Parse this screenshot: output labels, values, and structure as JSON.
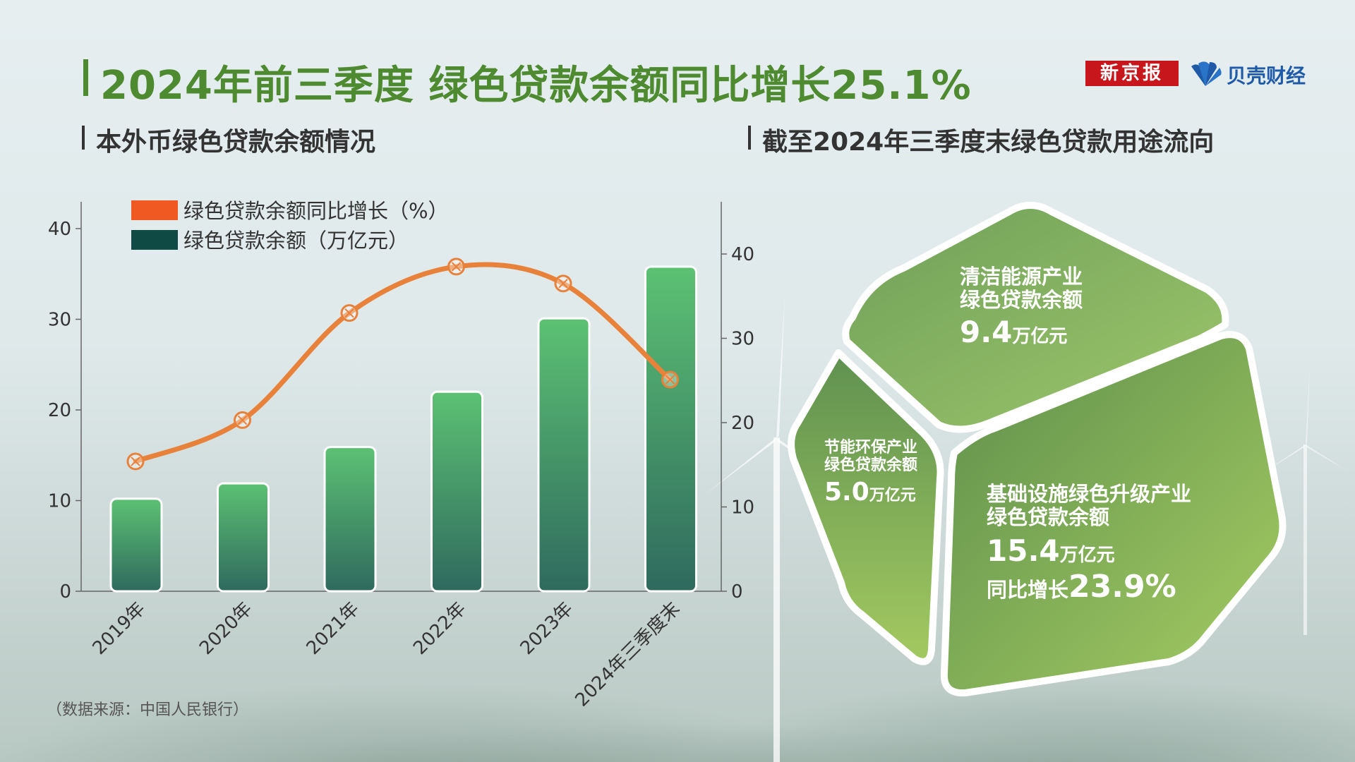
{
  "title": "2024年前三季度 绿色贷款余额同比增长25.1%",
  "logos": {
    "xinjingbao": "新京报",
    "beike": "贝壳财经"
  },
  "left_subtitle": "本外币绿色贷款余额情况",
  "right_subtitle": "截至2024年三季度末绿色贷款用途流向",
  "source": "（数据来源：中国人民银行）",
  "colors": {
    "accent": "#4e8a2f",
    "line": "#e8813a",
    "bar_top": "#5cc173",
    "bar_bottom": "#2f6a5e"
  },
  "chart_data": [
    {
      "type": "bar",
      "categories": [
        "2019年",
        "2020年",
        "2021年",
        "2022年",
        "2023年",
        "2024年三季度末"
      ],
      "series": [
        {
          "name": "绿色贷款余额（万亿元）",
          "axis": "left",
          "values": [
            10.2,
            11.9,
            15.9,
            22.0,
            30.1,
            35.8
          ]
        },
        {
          "name": "绿色贷款余额同比增长（%）",
          "axis": "right",
          "type": "line",
          "values": [
            15.4,
            20.3,
            33.0,
            38.5,
            36.5,
            25.1
          ]
        }
      ],
      "ylim_left": [
        0,
        40
      ],
      "ylim_right": [
        0,
        40
      ],
      "yticks_left": [
        "0",
        "10",
        "20",
        "30",
        "40"
      ],
      "yticks_right": [
        "0",
        "10",
        "20",
        "30",
        "40"
      ],
      "legend": [
        {
          "label": "绿色贷款余额同比增长（%）",
          "color": "#f05a22"
        },
        {
          "label": "绿色贷款余额（万亿元）",
          "color": "#0f4a44"
        }
      ],
      "legend_position": "top-left",
      "grid": false
    },
    {
      "type": "pie",
      "slices": [
        {
          "label_line1": "清洁能源产业",
          "label_line2": "绿色贷款余额",
          "value": "9.4",
          "unit": "万亿元"
        },
        {
          "label_line1": "节能环保产业",
          "label_line2": "绿色贷款余额",
          "value": "5.0",
          "unit": "万亿元"
        },
        {
          "label_line1": "基础设施绿色升级产业",
          "label_line2": "绿色贷款余额",
          "value": "15.4",
          "unit": "万亿元",
          "growth_label": "同比增长",
          "growth_value": "23.9%"
        }
      ]
    }
  ]
}
